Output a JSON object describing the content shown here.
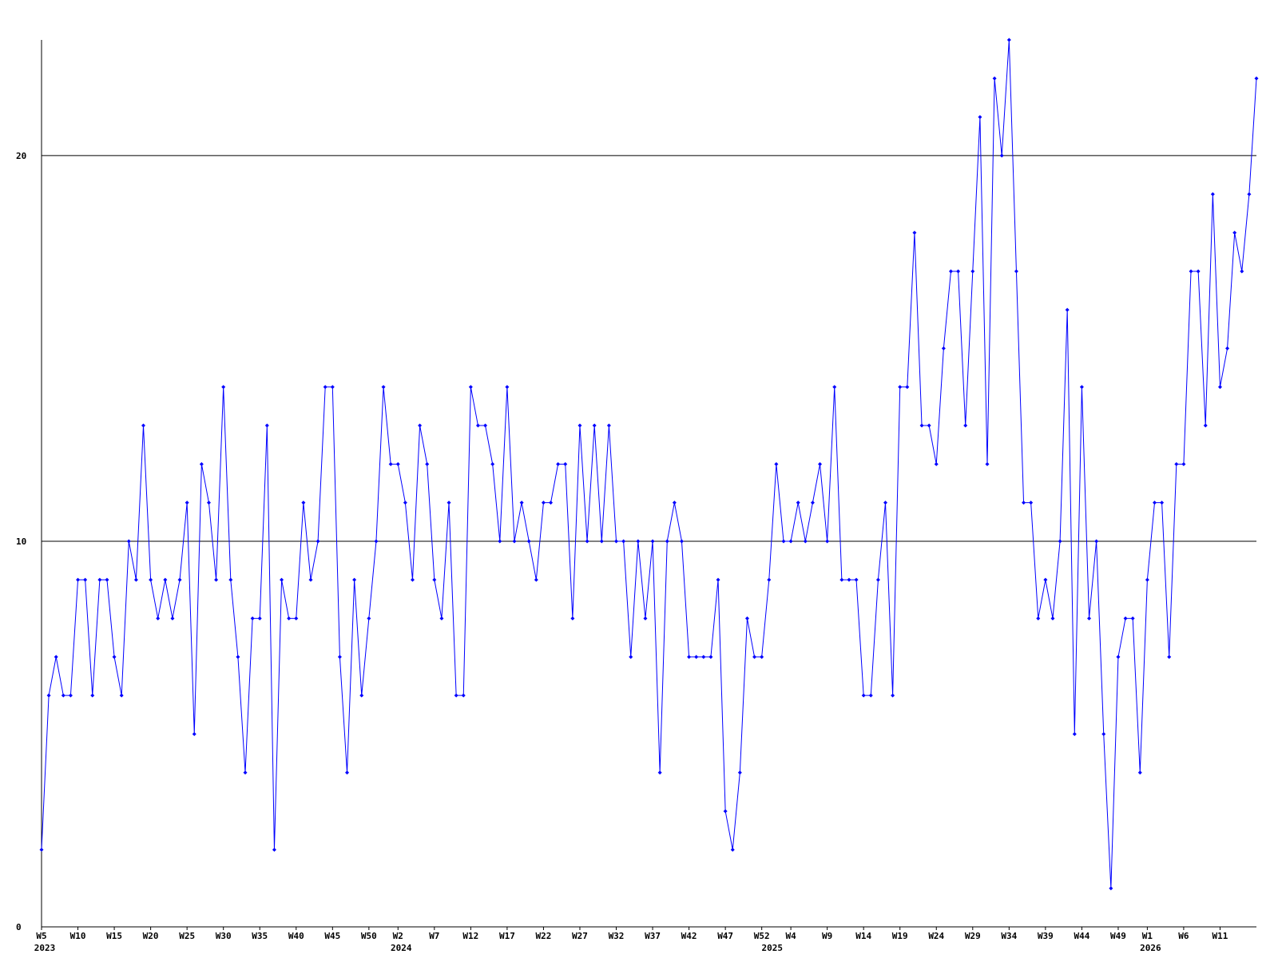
{
  "chart_data": {
    "type": "line",
    "categories": [
      "W5",
      null,
      null,
      null,
      null,
      "W10",
      null,
      null,
      null,
      null,
      "W15",
      null,
      null,
      null,
      null,
      "W20",
      null,
      null,
      null,
      null,
      "W25",
      null,
      null,
      null,
      null,
      "W30",
      null,
      null,
      null,
      null,
      "W35",
      null,
      null,
      null,
      null,
      "W40",
      null,
      null,
      null,
      null,
      "W45",
      null,
      null,
      null,
      null,
      "W50",
      null,
      null,
      null,
      "W2",
      null,
      null,
      null,
      null,
      "W7",
      null,
      null,
      null,
      null,
      "W12",
      null,
      null,
      null,
      null,
      "W17",
      null,
      null,
      null,
      null,
      "W22",
      null,
      null,
      null,
      null,
      "W27",
      null,
      null,
      null,
      null,
      "W32",
      null,
      null,
      null,
      null,
      "W37",
      null,
      null,
      null,
      null,
      "W42",
      null,
      null,
      null,
      null,
      "W47",
      null,
      null,
      null,
      null,
      "W52",
      null,
      null,
      null,
      "W4",
      null,
      null,
      null,
      null,
      "W9",
      null,
      null,
      null,
      null,
      "W14",
      null,
      null,
      null,
      null,
      "W19",
      null,
      null,
      null,
      null,
      "W24",
      null,
      null,
      null,
      null,
      "W29",
      null,
      null,
      null,
      null,
      "W34",
      null,
      null,
      null,
      null,
      "W39",
      null,
      null,
      null,
      null,
      "W44",
      null,
      null,
      null,
      null,
      "W49",
      null,
      null,
      null,
      "W1",
      null,
      null,
      null,
      null,
      "W6",
      null,
      null,
      null,
      null,
      "W11",
      null,
      null,
      null,
      null,
      null
    ],
    "category_years": [
      "2023",
      null,
      null,
      null,
      null,
      null,
      null,
      null,
      null,
      null,
      null,
      null,
      null,
      null,
      null,
      null,
      null,
      null,
      null,
      null,
      null,
      null,
      null,
      null,
      null,
      null,
      null,
      null,
      null,
      null,
      null,
      null,
      null,
      null,
      null,
      null,
      null,
      null,
      null,
      null,
      null,
      null,
      null,
      null,
      null,
      null,
      null,
      null,
      null,
      "2024",
      null,
      null,
      null,
      null,
      null,
      null,
      null,
      null,
      null,
      null,
      null,
      null,
      null,
      null,
      null,
      null,
      null,
      null,
      null,
      null,
      null,
      null,
      null,
      null,
      null,
      null,
      null,
      null,
      null,
      null,
      null,
      null,
      null,
      null,
      null,
      null,
      null,
      null,
      null,
      null,
      null,
      null,
      null,
      null,
      null,
      null,
      null,
      null,
      null,
      null,
      "2025",
      null,
      null,
      null,
      null,
      null,
      null,
      null,
      null,
      null,
      null,
      null,
      null,
      null,
      null,
      null,
      null,
      null,
      null,
      null,
      null,
      null,
      null,
      null,
      null,
      null,
      null,
      null,
      null,
      null,
      null,
      null,
      null,
      null,
      null,
      null,
      null,
      null,
      null,
      null,
      null,
      null,
      null,
      null,
      null,
      null,
      null,
      null,
      null,
      null,
      null,
      null,
      "2026",
      null,
      null,
      null,
      null,
      null,
      null,
      null,
      null,
      null,
      null,
      null,
      null,
      null,
      null,
      null
    ],
    "series": [
      {
        "color": "#0000ff",
        "values": [
          2,
          6,
          7,
          6,
          6,
          9,
          9,
          6,
          9,
          9,
          7,
          6,
          10,
          9,
          13,
          9,
          8,
          9,
          8,
          9,
          11,
          5,
          12,
          11,
          9,
          14,
          9,
          7,
          4,
          8,
          8,
          13,
          2,
          9,
          8,
          8,
          11,
          9,
          10,
          14,
          14,
          7,
          4,
          9,
          6,
          8,
          10,
          14,
          12,
          12,
          11,
          9,
          13,
          12,
          9,
          8,
          11,
          6,
          6,
          14,
          13,
          13,
          12,
          10,
          14,
          10,
          11,
          10,
          9,
          11,
          11,
          12,
          12,
          8,
          13,
          10,
          13,
          10,
          13,
          10,
          10,
          7,
          10,
          8,
          10,
          4,
          10,
          11,
          10,
          7,
          7,
          7,
          7,
          9,
          3,
          2,
          4,
          8,
          7,
          7,
          9,
          12,
          10,
          10,
          11,
          10,
          11,
          12,
          10,
          14,
          9,
          9,
          9,
          6,
          6,
          9,
          11,
          6,
          14,
          14,
          18,
          13,
          13,
          12,
          15,
          17,
          17,
          13,
          17,
          21,
          12,
          22,
          20,
          23,
          17,
          11,
          11,
          8,
          9,
          8,
          10,
          16,
          5,
          14,
          8,
          10,
          5,
          1,
          7,
          8,
          8,
          4,
          9,
          11,
          11,
          7,
          12,
          12,
          17,
          17,
          13,
          19,
          14,
          15,
          18,
          17,
          19,
          22
        ]
      }
    ],
    "ylim": [
      0,
      23
    ],
    "yticks": [
      0,
      10,
      20
    ],
    "grid": true,
    "grid_color": "#000000",
    "axis_color": "#000000"
  }
}
